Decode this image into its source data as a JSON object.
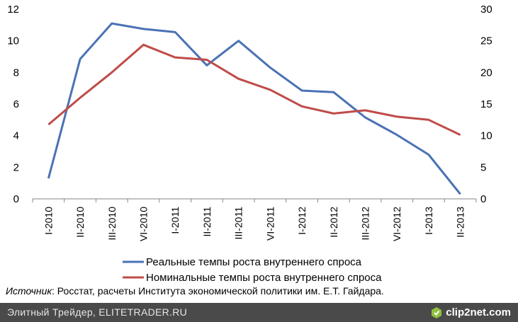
{
  "chart_data": {
    "type": "line",
    "categories": [
      "I-2010",
      "II-2010",
      "III-2010",
      "VI-2010",
      "I-2011",
      "II-2011",
      "III-2011",
      "VI-2011",
      "I-2012",
      "II-2012",
      "III-2012",
      "VI-2012",
      "I-2013",
      "II-2013"
    ],
    "y_left": {
      "min": 0,
      "max": 12,
      "ticks": [
        0,
        2,
        4,
        6,
        8,
        10,
        12
      ]
    },
    "y_right": {
      "min": 0,
      "max": 30,
      "ticks": [
        0,
        5,
        10,
        15,
        20,
        25,
        30
      ]
    },
    "series": [
      {
        "name": "Реальные темпы роста внутреннего спроса",
        "color": "#4a72b5",
        "axis": "left",
        "values": [
          1.3,
          8.85,
          11.1,
          10.75,
          10.55,
          8.45,
          10.0,
          8.3,
          6.85,
          6.75,
          5.15,
          4.05,
          2.8,
          0.3
        ]
      },
      {
        "name": "Номинальные темпы роста внутреннего спроса",
        "color": "#bf4b49",
        "axis": "left",
        "values": [
          4.7,
          6.4,
          8.0,
          9.75,
          8.95,
          8.8,
          7.6,
          6.9,
          5.85,
          5.4,
          5.6,
          5.2,
          5.0,
          4.05
        ]
      }
    ],
    "legend_placement": "bottom",
    "grid": false
  },
  "source": {
    "label": "Источник",
    "text": ": Росстат, расчеты Института экономической политики им. Е.Т. Гайдара."
  },
  "footer": {
    "left_text": "Элитный Трейдер, ELITETRADER.RU",
    "watermark": "clip2net.com",
    "watermark_icon": "clip2net-logo-icon"
  }
}
